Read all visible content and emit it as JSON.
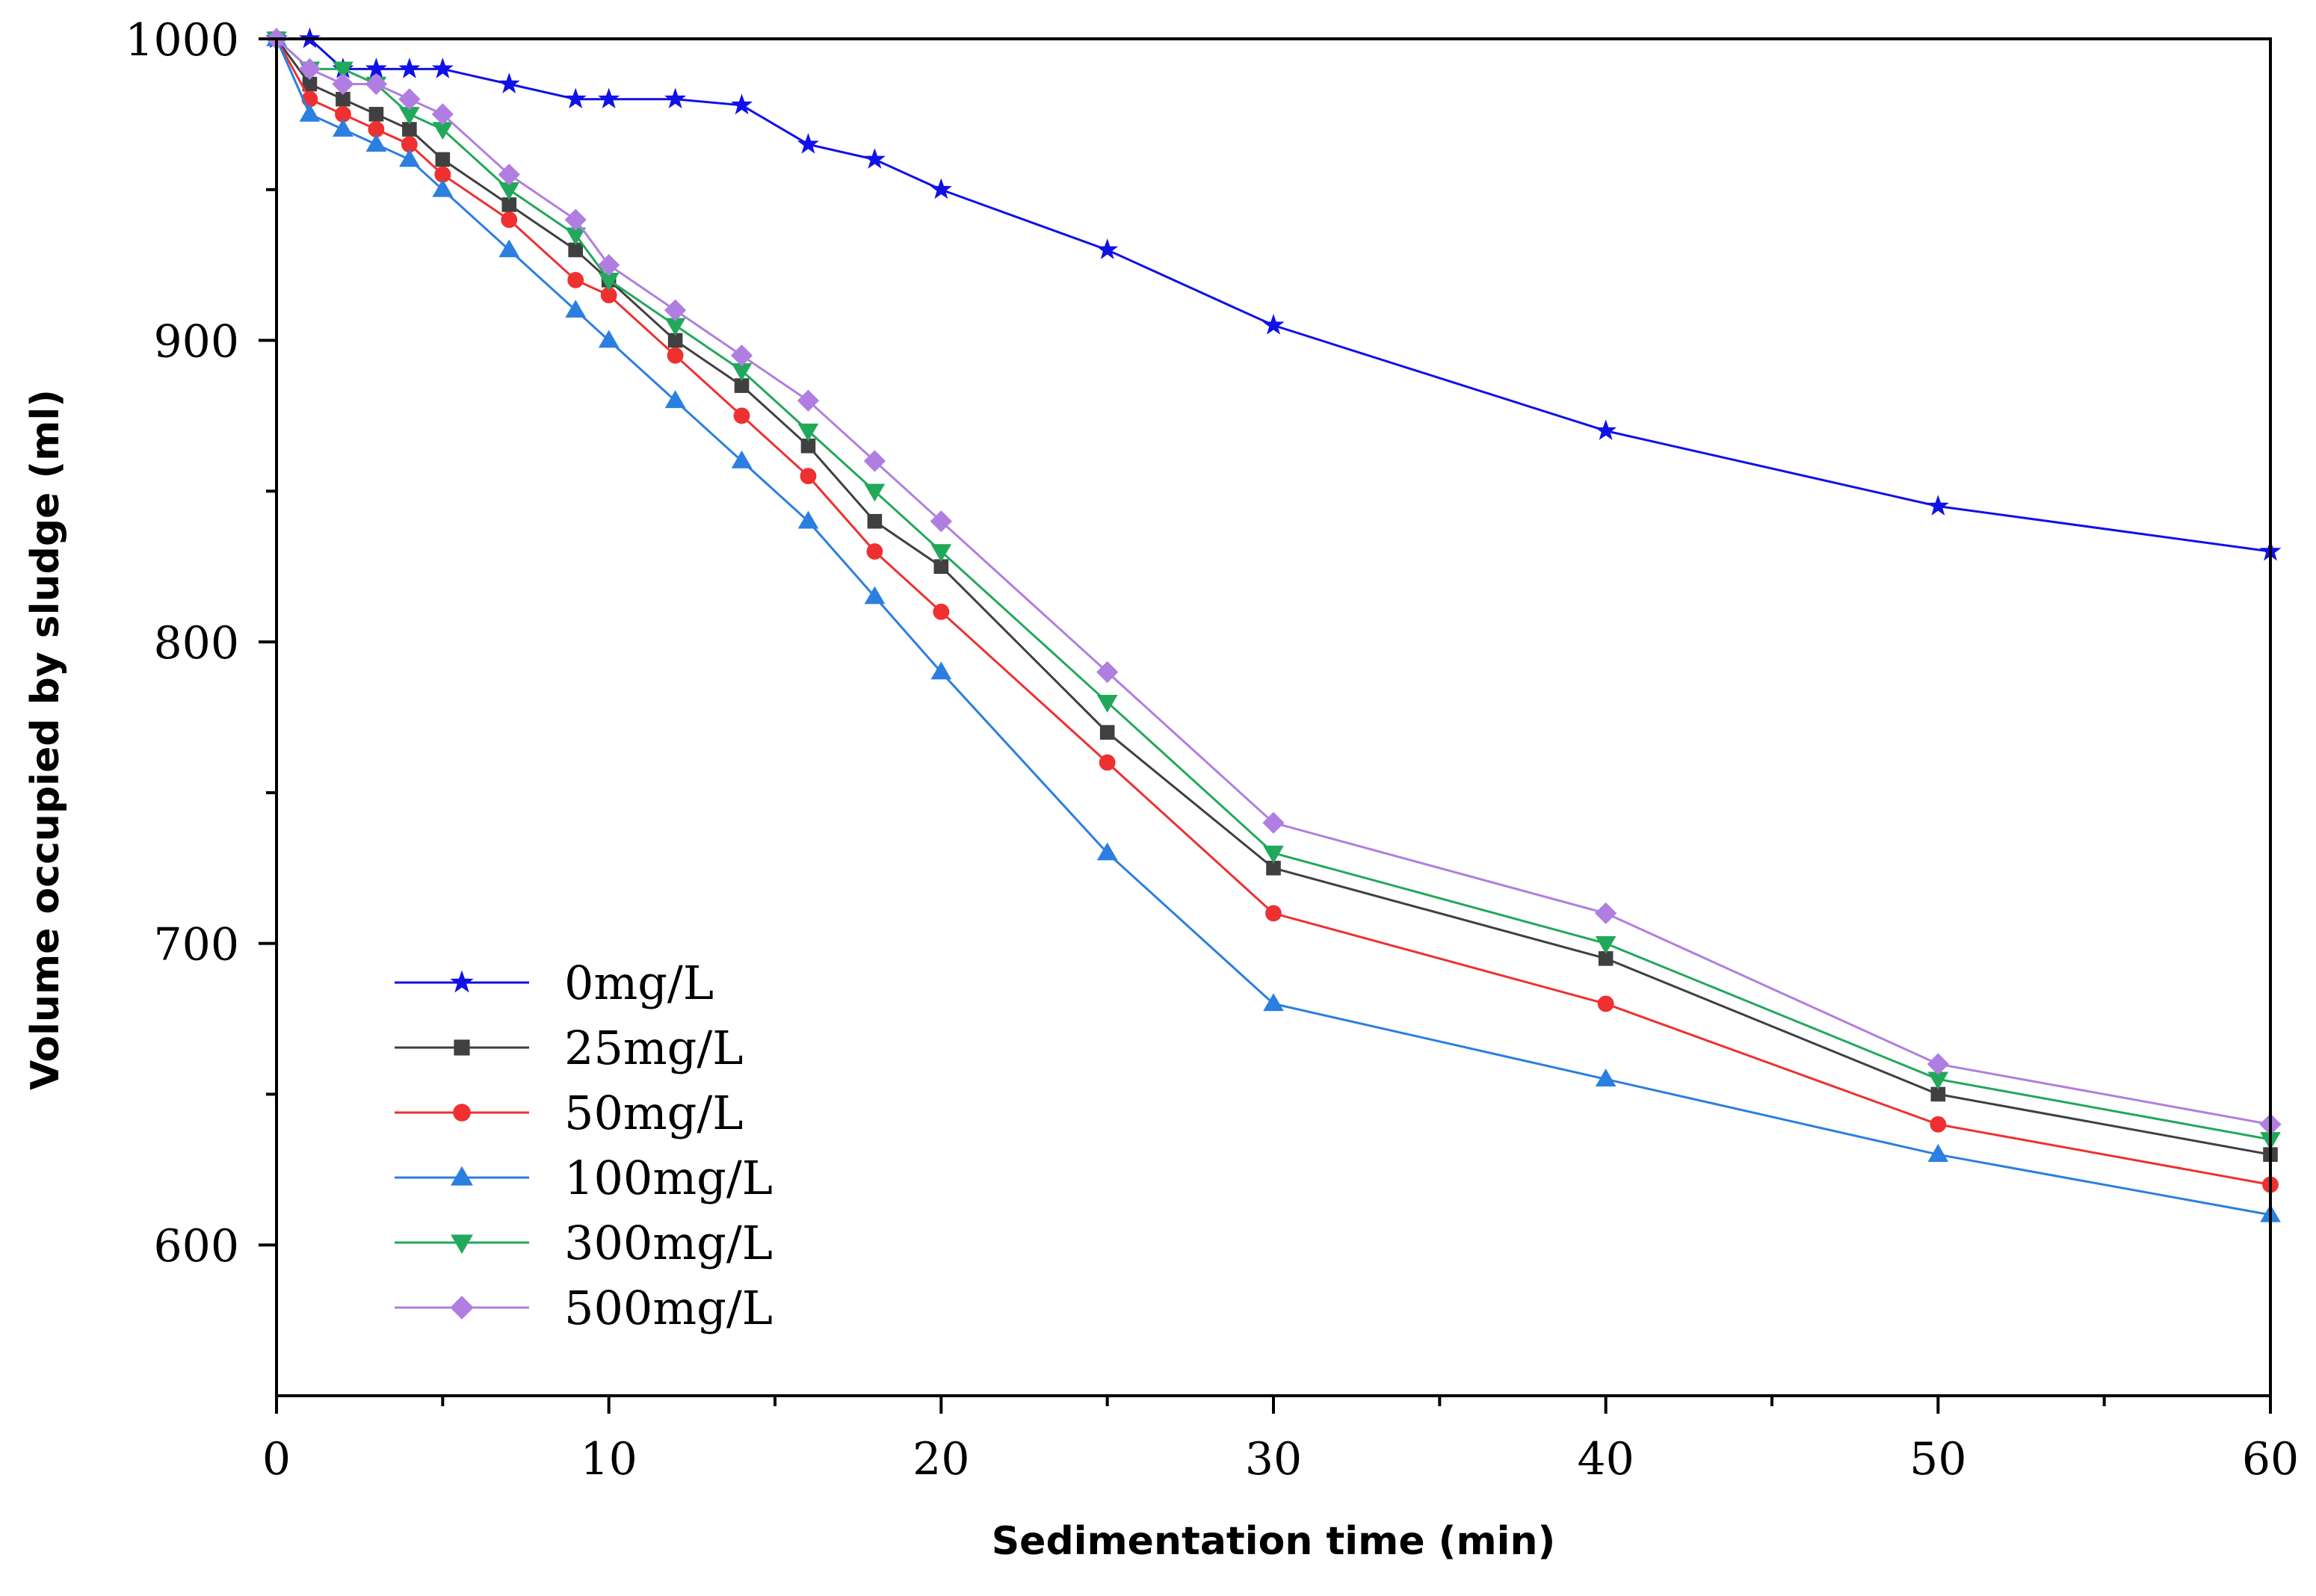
{
  "chart_data": {
    "type": "line",
    "title": "",
    "xlabel": "Sedimentation time (min)",
    "ylabel": "Volume occupied by sludge (ml)",
    "xlim": [
      0,
      60
    ],
    "ylim": [
      550,
      1000
    ],
    "xticks": [
      0,
      10,
      20,
      30,
      40,
      50,
      60
    ],
    "yticks": [
      600,
      700,
      800,
      900,
      1000
    ],
    "grid": false,
    "legend_position": "bottom-left",
    "series": [
      {
        "name": "0mg/L",
        "color": "#1010e8",
        "marker": "star",
        "x": [
          0,
          1,
          2,
          3,
          4,
          5,
          7,
          9,
          10,
          12,
          14,
          16,
          18,
          20,
          25,
          30,
          40,
          50,
          60
        ],
        "y": [
          1000,
          1000,
          990,
          990,
          990,
          990,
          985,
          980,
          980,
          980,
          978,
          965,
          960,
          950,
          930,
          905,
          870,
          845,
          830
        ]
      },
      {
        "name": "25mg/L",
        "color": "#404040",
        "marker": "square",
        "x": [
          0,
          1,
          2,
          3,
          4,
          5,
          7,
          9,
          10,
          12,
          14,
          16,
          18,
          20,
          25,
          30,
          40,
          50,
          60
        ],
        "y": [
          1000,
          985,
          980,
          975,
          970,
          960,
          945,
          930,
          920,
          900,
          885,
          865,
          840,
          825,
          770,
          725,
          695,
          650,
          630
        ]
      },
      {
        "name": "50mg/L",
        "color": "#ee3030",
        "marker": "circle",
        "x": [
          0,
          1,
          2,
          3,
          4,
          5,
          7,
          9,
          10,
          12,
          14,
          16,
          18,
          20,
          25,
          30,
          40,
          50,
          60
        ],
        "y": [
          1000,
          980,
          975,
          970,
          965,
          955,
          940,
          920,
          915,
          895,
          875,
          855,
          830,
          810,
          760,
          710,
          680,
          640,
          620
        ]
      },
      {
        "name": "100mg/L",
        "color": "#2a7fe0",
        "marker": "triangle-up",
        "x": [
          0,
          1,
          2,
          3,
          4,
          5,
          7,
          9,
          10,
          12,
          14,
          16,
          18,
          20,
          25,
          30,
          40,
          50,
          60
        ],
        "y": [
          1000,
          975,
          970,
          965,
          960,
          950,
          930,
          910,
          900,
          880,
          860,
          840,
          815,
          790,
          730,
          680,
          655,
          630,
          610
        ]
      },
      {
        "name": "300mg/L",
        "color": "#22a85a",
        "marker": "triangle-down",
        "x": [
          0,
          1,
          2,
          3,
          4,
          5,
          7,
          9,
          10,
          12,
          14,
          16,
          18,
          20,
          25,
          30,
          40,
          50,
          60
        ],
        "y": [
          1000,
          990,
          990,
          985,
          975,
          970,
          950,
          935,
          920,
          905,
          890,
          870,
          850,
          830,
          780,
          730,
          700,
          655,
          635
        ]
      },
      {
        "name": "500mg/L",
        "color": "#b07ee0",
        "marker": "diamond",
        "x": [
          0,
          1,
          2,
          3,
          4,
          5,
          7,
          9,
          10,
          12,
          14,
          16,
          18,
          20,
          25,
          30,
          40,
          50,
          60
        ],
        "y": [
          1000,
          990,
          985,
          985,
          980,
          975,
          955,
          940,
          925,
          910,
          895,
          880,
          860,
          840,
          790,
          740,
          710,
          660,
          640
        ]
      }
    ]
  }
}
